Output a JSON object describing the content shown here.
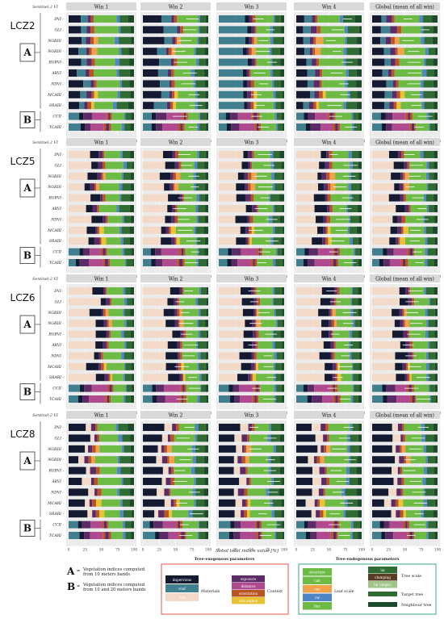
{
  "figure": {
    "xlabel": "Sobol total indice value [%]",
    "ylabel_header": "Sentinel-2 VI",
    "windows": [
      "Win 1",
      "Win 2",
      "Win 3",
      "Win 4",
      "Global (mean of all win)"
    ],
    "vegetation_indices": [
      "DVI",
      "GLI",
      "NGRDI",
      "NGRDI",
      "RGBVI",
      "ARVI",
      "NDVI",
      "MCARI",
      "SRARI",
      "CCII",
      "TCARI"
    ],
    "x_ticks": [
      "0",
      "25",
      "50",
      "75",
      "100"
    ],
    "group_a_count": 9
  },
  "zones": [
    {
      "label": "LCZ2",
      "base": "built"
    },
    {
      "label": "LCZ5",
      "base": "open"
    },
    {
      "label": "LCZ6",
      "base": "sparse"
    },
    {
      "label": "LCZ8",
      "base": "large"
    }
  ],
  "legend": {
    "a_letter": "A",
    "a_text": [
      "Vegetation indices computed",
      "from 10 meters bands"
    ],
    "b_letter": "B",
    "b_text": [
      "Vegetation indices computed",
      "from 10 and 20 meters bands"
    ],
    "exo_title": "Tree-exogenous parameters",
    "endo_title": "Tree-endogenous parameters",
    "materials_label": "Materials",
    "context_label": "Context",
    "leaf_scale_label": "Leaf scale",
    "tree_scale_label": "Tree scale",
    "target_tree_label": "Target tree",
    "neighbour_tree_label": "Neighbour tree",
    "materials": [
      {
        "name": "impervious",
        "color": "#151a33"
      },
      {
        "name": "roof",
        "color": "#3f7f8f"
      },
      {
        "name": "soil",
        "color": "#f3d9c7"
      }
    ],
    "context": [
      {
        "name": "exposure",
        "color": "#5c2a66"
      },
      {
        "name": "distance",
        "color": "#b04a8e"
      },
      {
        "name": "orientation",
        "color": "#b9531f"
      },
      {
        "name": "sun angles",
        "color": "#e8c334"
      }
    ],
    "leaf": [
      {
        "name": "structure",
        "color": "#6dbb44"
      },
      {
        "name": "cab",
        "color": "#6dbb44"
      },
      {
        "name": "car",
        "color": "#f0a24a"
      },
      {
        "name": "cw",
        "color": "#4f86c6"
      },
      {
        "name": "lma",
        "color": "#6dbb44"
      }
    ],
    "tree": [
      {
        "name": "lai",
        "color": "#2f6b32"
      },
      {
        "name": "clumping",
        "color": "#5a3b24"
      },
      {
        "name": "lai (angle)",
        "color": "#9fc58a"
      }
    ],
    "colors": {
      "target_tree": "#2f6b32",
      "neighbour_tree": "#1c4a2a",
      "group_box": "#333333",
      "strip_bg": "#d9d9d9",
      "panel_bg": "#ebebeb",
      "exo_border": "#e05555",
      "endo_border": "#3aa77a"
    }
  },
  "chart_data": {
    "type": "stacked-bar",
    "note_on_values": "segment shares (%) per vegetation index, window and LCZ",
    "categories": [
      "DVI",
      "GLI",
      "NGRDI",
      "NGRDI",
      "RGBVI",
      "ARVI",
      "NDVI",
      "MCARI",
      "SRARI",
      "CCII",
      "TCARI"
    ],
    "xlim": [
      0,
      100
    ],
    "x_ticks": [
      0,
      25,
      50,
      75,
      100
    ],
    "panels": [
      {
        "lcz": "LCZ2",
        "window": "Win 1",
        "DVI": {
          "impervious": 12,
          "soil": 3,
          "orientation": 3,
          "structure": 45,
          "lai": 14
        }
      },
      {
        "lcz": "LCZ2",
        "window": "Win 4",
        "DVI": {
          "roof": 55,
          "impervious": 8,
          "structure": 25,
          "lai": 10
        }
      },
      {
        "lcz": "LCZ5",
        "window": "Win 1",
        "DVI": {
          "soil": 28,
          "impervious": 6,
          "structure": 45,
          "lai": 15
        }
      },
      {
        "lcz": "LCZ6",
        "window": "Win 1",
        "DVI": {
          "soil": 30,
          "impervious": 14,
          "structure": 38,
          "lai": 12
        }
      },
      {
        "lcz": "LCZ8",
        "window": "Win 1",
        "DVI": {
          "impervious": 20,
          "soil": 8,
          "structure": 48,
          "lai": 18
        }
      }
    ]
  }
}
